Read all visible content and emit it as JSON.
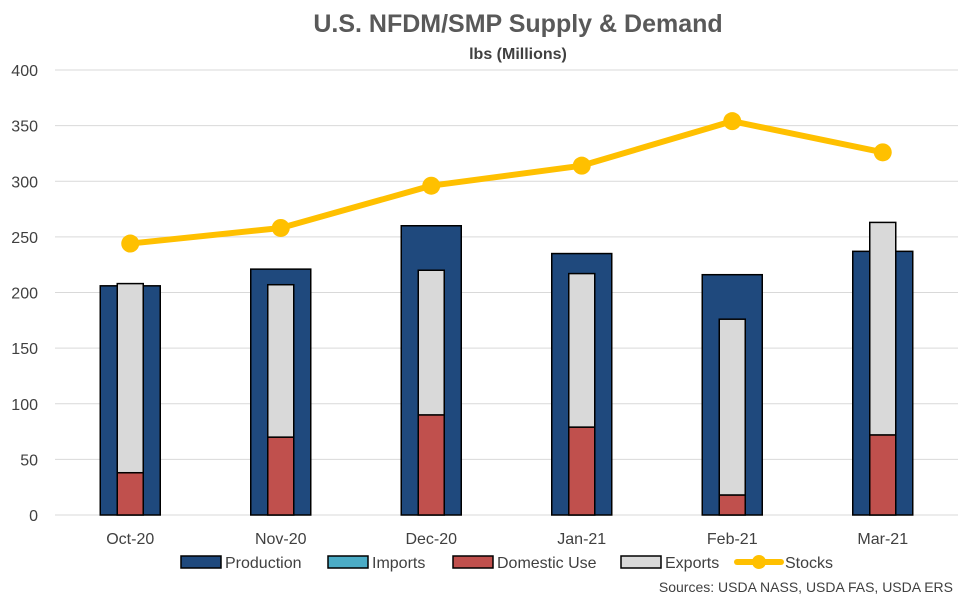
{
  "chart_data": {
    "type": "bar",
    "title": "U.S. NFDM/SMP Supply & Demand",
    "subtitle": "lbs (Millions)",
    "categories": [
      "Oct-20",
      "Nov-20",
      "Dec-20",
      "Jan-21",
      "Feb-21",
      "Mar-21"
    ],
    "ylim": [
      0,
      400
    ],
    "yticks": [
      0,
      50,
      100,
      150,
      200,
      250,
      300,
      350,
      400
    ],
    "grid": true,
    "legend_position": "bottom",
    "series": [
      {
        "name": "Production",
        "kind": "bar",
        "color": "#1f497d",
        "values": [
          206,
          221,
          260,
          235,
          216,
          237
        ]
      },
      {
        "name": "Imports",
        "kind": "bar-stacked",
        "color": "#4bacc6",
        "values": [
          0,
          0,
          0,
          0,
          0,
          0
        ]
      },
      {
        "name": "Domestic Use",
        "kind": "bar-stacked",
        "color": "#c0504d",
        "values": [
          38,
          70,
          90,
          79,
          18,
          72
        ]
      },
      {
        "name": "Exports",
        "kind": "bar-stacked",
        "color": "#d9d9d9",
        "values": [
          170,
          137,
          130,
          138,
          158,
          191
        ]
      },
      {
        "name": "Stocks",
        "kind": "line",
        "color": "#ffc000",
        "values": [
          244,
          258,
          296,
          314,
          354,
          326
        ]
      }
    ],
    "source": "Sources: USDA NASS, USDA FAS, USDA ERS"
  }
}
